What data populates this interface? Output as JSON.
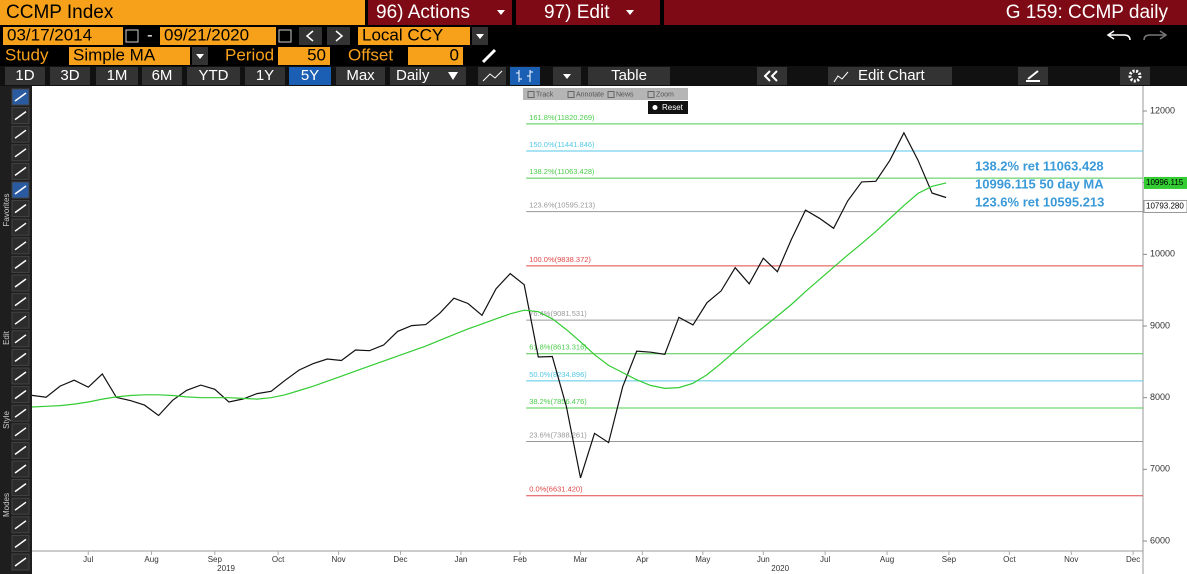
{
  "header": {
    "security": "CCMP Index",
    "actions": "96) Actions",
    "edit": "97) Edit",
    "window": "G 159: CCMP daily"
  },
  "controls": {
    "date_start": "03/17/2014",
    "date_separator": "-",
    "date_end": "09/21/2020",
    "currency": "Local CCY",
    "study_label": "Study",
    "study": "Simple MA",
    "period_label": "Period",
    "period": "50",
    "offset_label": "Offset",
    "offset": "0"
  },
  "toolbar": {
    "ranges": [
      "1D",
      "3D",
      "1M",
      "6M",
      "YTD",
      "1Y",
      "5Y",
      "Max"
    ],
    "active_range": 6,
    "frequency": "Daily",
    "table": "Table",
    "edit_chart": "Edit Chart"
  },
  "side_labels": [
    "Favorites",
    "Edit",
    "Style",
    "Modes"
  ],
  "chart_tools": {
    "tools": [
      "Track",
      "Annotate",
      "News",
      "Zoom"
    ],
    "reset": "Reset"
  },
  "chart_data": {
    "type": "line",
    "x": [
      0,
      1,
      2,
      3,
      4,
      5,
      6,
      7,
      8,
      9,
      10,
      11,
      12,
      13,
      14,
      15,
      16,
      17,
      18,
      19,
      20,
      21,
      22,
      23,
      24,
      25,
      26,
      27,
      28,
      29,
      30,
      31,
      32,
      33,
      34,
      35,
      36,
      37,
      38,
      39,
      40,
      41,
      42,
      43,
      44,
      45,
      46,
      47,
      48,
      49,
      50,
      51,
      52,
      53,
      54,
      55,
      56,
      57,
      58,
      59,
      60,
      61,
      62,
      63,
      64,
      65
    ],
    "series": [
      {
        "name": "CCMP",
        "color": "#111111",
        "last_label": "10793.280",
        "values": [
          8031,
          8006,
          8161,
          8244,
          8146,
          8330,
          8004,
          7959,
          7896,
          7751,
          7963,
          8103,
          8176,
          8117,
          7940,
          7982,
          8057,
          8089,
          8243,
          8386,
          8475,
          8540,
          8519,
          8665,
          8656,
          8735,
          8924,
          9006,
          9020,
          9178,
          9388,
          9314,
          9150,
          9520,
          9731,
          9576,
          8567,
          8575,
          7875,
          6880,
          7502,
          7373,
          8153,
          8650,
          8634,
          8605,
          9121,
          9015,
          9325,
          9490,
          9814,
          9589,
          9946,
          9757,
          10208,
          10617,
          10503,
          10363,
          10745,
          11011,
          11019,
          11312,
          11696,
          11313,
          10854,
          10793.28
        ]
      },
      {
        "name": "50 day MA",
        "color": "#33cc33",
        "values": [
          7870,
          7880,
          7890,
          7910,
          7940,
          7980,
          8010,
          8030,
          8040,
          8040,
          8030,
          8010,
          8000,
          8000,
          8000,
          7990,
          7980,
          8000,
          8040,
          8100,
          8160,
          8230,
          8300,
          8370,
          8440,
          8510,
          8580,
          8650,
          8720,
          8800,
          8880,
          8960,
          9030,
          9100,
          9170,
          9220,
          9200,
          9100,
          8950,
          8780,
          8600,
          8450,
          8350,
          8250,
          8170,
          8130,
          8140,
          8200,
          8320,
          8480,
          8650,
          8820,
          8980,
          9140,
          9300,
          9480,
          9650,
          9820,
          9990,
          10150,
          10320,
          10500,
          10680,
          10850,
          10950,
          10996.115
        ]
      }
    ],
    "fib_levels": [
      {
        "value": 11820.269,
        "label": "161.8%(11820.269)",
        "color": "#4ccc4c"
      },
      {
        "value": 11441.846,
        "label": "150.0%(11441.846)",
        "color": "#55c8e8"
      },
      {
        "value": 11063.428,
        "label": "138.2%(11063.428)",
        "color": "#4ccc4c"
      },
      {
        "value": 10595.213,
        "label": "123.6%(10595.213)",
        "color": "#999999"
      },
      {
        "value": 9838.372,
        "label": "100.0%(9838.372)",
        "color": "#e04848"
      },
      {
        "value": 9081.531,
        "label": "76.4%(9081.531)",
        "color": "#999999"
      },
      {
        "value": 8613.316,
        "label": "61.8%(8613.316)",
        "color": "#4ccc4c"
      },
      {
        "value": 8234.896,
        "label": "50.0%(8234.896)",
        "color": "#55c8e8"
      },
      {
        "value": 7856.476,
        "label": "38.2%(7856.476)",
        "color": "#4ccc4c"
      },
      {
        "value": 7388.261,
        "label": "23.6%(7388.261)",
        "color": "#999999"
      },
      {
        "value": 6631.42,
        "label": "0.0%(6631.420)",
        "color": "#e04848"
      }
    ],
    "annotations": [
      "138.2% ret 11063.428",
      "10996.115 50 day MA",
      "123.6% ret 10595.213"
    ],
    "xlim": [
      0,
      79
    ],
    "xticks": [
      {
        "value": 4,
        "label": "Jul"
      },
      {
        "value": 8.5,
        "label": "Aug"
      },
      {
        "value": 13,
        "label": "Sep"
      },
      {
        "value": 17.5,
        "label": "Oct"
      },
      {
        "value": 21.8,
        "label": "Nov"
      },
      {
        "value": 26.2,
        "label": "Dec"
      },
      {
        "value": 30.5,
        "label": "Jan"
      },
      {
        "value": 34.7,
        "label": "Feb"
      },
      {
        "value": 39,
        "label": "Mar"
      },
      {
        "value": 43.4,
        "label": "Apr"
      },
      {
        "value": 47.7,
        "label": "May"
      },
      {
        "value": 52,
        "label": "Jun"
      },
      {
        "value": 56.4,
        "label": "Jul"
      },
      {
        "value": 60.8,
        "label": "Aug"
      },
      {
        "value": 65.2,
        "label": "Sep"
      },
      {
        "value": 69.5,
        "label": "Oct"
      },
      {
        "value": 73.9,
        "label": "Nov"
      },
      {
        "value": 78.3,
        "label": "Dec"
      }
    ],
    "year_ticks": [
      {
        "value": 13.8,
        "label": "2019"
      },
      {
        "value": 53.2,
        "label": "2020"
      }
    ],
    "ylim": [
      6000,
      12000
    ],
    "yticks": [
      6000,
      7000,
      8000,
      9000,
      10000,
      11000,
      12000
    ],
    "grid": false
  }
}
